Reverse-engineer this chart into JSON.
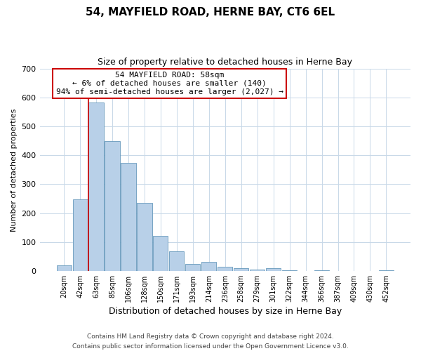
{
  "title": "54, MAYFIELD ROAD, HERNE BAY, CT6 6EL",
  "subtitle": "Size of property relative to detached houses in Herne Bay",
  "xlabel": "Distribution of detached houses by size in Herne Bay",
  "ylabel": "Number of detached properties",
  "bar_labels": [
    "20sqm",
    "42sqm",
    "63sqm",
    "85sqm",
    "106sqm",
    "128sqm",
    "150sqm",
    "171sqm",
    "193sqm",
    "214sqm",
    "236sqm",
    "258sqm",
    "279sqm",
    "301sqm",
    "322sqm",
    "344sqm",
    "366sqm",
    "387sqm",
    "409sqm",
    "430sqm",
    "452sqm"
  ],
  "bar_values": [
    18,
    247,
    583,
    449,
    374,
    236,
    121,
    67,
    24,
    31,
    14,
    10,
    5,
    9,
    1,
    0,
    3,
    0,
    0,
    0,
    2
  ],
  "bar_color": "#b8d0e8",
  "bar_edge_color": "#6699bb",
  "ylim": [
    0,
    700
  ],
  "yticks": [
    0,
    100,
    200,
    300,
    400,
    500,
    600,
    700
  ],
  "annotation_line1": "54 MAYFIELD ROAD: 58sqm",
  "annotation_line2": "← 6% of detached houses are smaller (140)",
  "annotation_line3": "94% of semi-detached houses are larger (2,027) →",
  "vline_color": "#cc0000",
  "footer1": "Contains HM Land Registry data © Crown copyright and database right 2024.",
  "footer2": "Contains public sector information licensed under the Open Government Licence v3.0.",
  "grid_color": "#c8d8e8",
  "title_fontsize": 11,
  "subtitle_fontsize": 9,
  "ylabel_fontsize": 8,
  "xlabel_fontsize": 9,
  "tick_fontsize": 7,
  "annotation_fontsize": 8,
  "footer_fontsize": 6.5
}
